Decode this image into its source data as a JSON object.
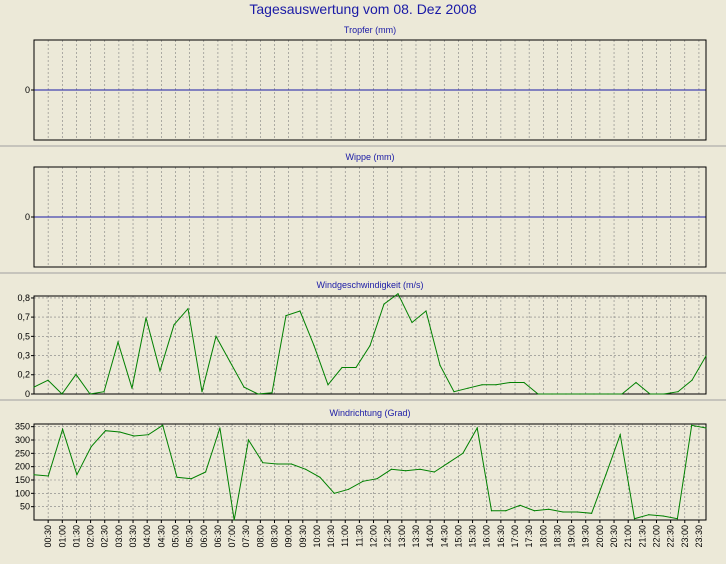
{
  "title": "Tagesauswertung vom 08. Dez 2008",
  "colors": {
    "background": "#ece9d8",
    "title": "#1a1aa6",
    "zero_line": "#1a1aa6",
    "series": "#008000",
    "grid": "#808080"
  },
  "chart_data": [
    {
      "type": "line",
      "title": "Tropfer (mm)",
      "y_ticks": [
        "0"
      ],
      "ylim": [
        -1,
        1
      ],
      "grid": true,
      "series": [
        {
          "values": [
            0,
            0,
            0,
            0,
            0,
            0,
            0,
            0,
            0,
            0,
            0,
            0,
            0,
            0,
            0,
            0,
            0,
            0,
            0,
            0,
            0,
            0,
            0,
            0,
            0,
            0,
            0,
            0,
            0,
            0,
            0,
            0,
            0,
            0,
            0,
            0,
            0,
            0,
            0,
            0,
            0,
            0,
            0,
            0,
            0,
            0,
            0,
            0
          ]
        }
      ]
    },
    {
      "type": "line",
      "title": "Wippe (mm)",
      "y_ticks": [
        "0"
      ],
      "ylim": [
        -1,
        1
      ],
      "grid": true,
      "series": [
        {
          "values": [
            0,
            0,
            0,
            0,
            0,
            0,
            0,
            0,
            0,
            0,
            0,
            0,
            0,
            0,
            0,
            0,
            0,
            0,
            0,
            0,
            0,
            0,
            0,
            0,
            0,
            0,
            0,
            0,
            0,
            0,
            0,
            0,
            0,
            0,
            0,
            0,
            0,
            0,
            0,
            0,
            0,
            0,
            0,
            0,
            0,
            0,
            0,
            0
          ]
        }
      ]
    },
    {
      "type": "line",
      "title": "Windgeschwindigkeit (m/s)",
      "y_ticks": [
        "0",
        "0,2",
        "0,3",
        "0,5",
        "0,7",
        "0,8"
      ],
      "y_tick_values": [
        0,
        0.167,
        0.333,
        0.5,
        0.667,
        0.833
      ],
      "ylim": [
        0,
        0.85
      ],
      "grid": true,
      "series": [
        {
          "values": [
            0.06,
            0.12,
            0.0,
            0.17,
            0.0,
            0.02,
            0.45,
            0.05,
            0.66,
            0.2,
            0.6,
            0.74,
            0.02,
            0.5,
            0.28,
            0.06,
            0.0,
            0.01,
            0.68,
            0.72,
            0.42,
            0.08,
            0.23,
            0.23,
            0.42,
            0.78,
            0.87,
            0.62,
            0.72,
            0.25,
            0.02,
            0.05,
            0.08,
            0.08,
            0.1,
            0.1,
            0.0,
            0.0,
            0.0,
            0.0,
            0.0,
            0.0,
            0.0,
            0.1,
            0.0,
            0.0,
            0.02,
            0.12,
            0.33
          ]
        }
      ]
    },
    {
      "type": "line",
      "title": "Windrichtung (Grad)",
      "y_ticks": [
        "50",
        "100",
        "150",
        "200",
        "250",
        "300",
        "350"
      ],
      "y_tick_values": [
        50,
        100,
        150,
        200,
        250,
        300,
        350
      ],
      "ylim": [
        0,
        360
      ],
      "grid": true,
      "series": [
        {
          "values": [
            170,
            165,
            340,
            170,
            275,
            335,
            330,
            315,
            320,
            355,
            160,
            155,
            180,
            345,
            0,
            300,
            215,
            210,
            210,
            190,
            160,
            100,
            115,
            145,
            155,
            190,
            185,
            190,
            180,
            215,
            250,
            345,
            35,
            35,
            55,
            35,
            40,
            30,
            30,
            25,
            170,
            320,
            5,
            20,
            15,
            5,
            355,
            345
          ]
        }
      ]
    }
  ],
  "x_ticks": [
    "00:30",
    "01:00",
    "01:30",
    "02:00",
    "02:30",
    "03:00",
    "03:30",
    "04:00",
    "04:30",
    "05:00",
    "05:30",
    "06:00",
    "06:30",
    "07:00",
    "07:30",
    "08:00",
    "08:30",
    "09:00",
    "09:30",
    "10:00",
    "10:30",
    "11:00",
    "11:30",
    "12:00",
    "12:30",
    "13:00",
    "13:30",
    "14:00",
    "14:30",
    "15:00",
    "15:30",
    "16:00",
    "16:30",
    "17:00",
    "17:30",
    "18:00",
    "18:30",
    "19:00",
    "19:30",
    "20:00",
    "20:30",
    "21:00",
    "21:30",
    "22:00",
    "22:30",
    "23:00",
    "23:30"
  ]
}
